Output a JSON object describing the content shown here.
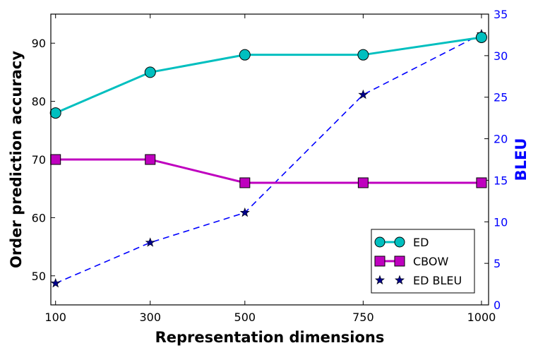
{
  "chart_data": {
    "type": "line",
    "xlabel": "Representation dimensions",
    "ylabel_left": "Order prediction accuracy",
    "ylabel_right": "BLEU",
    "x": [
      100,
      300,
      500,
      750,
      1000
    ],
    "x_tick_labels": [
      "100",
      "300",
      "500",
      "750",
      "1000"
    ],
    "xlim": [
      90,
      1015
    ],
    "ylim_left": [
      45,
      95
    ],
    "ylim_right": [
      0,
      35
    ],
    "y_left_ticks": [
      50,
      60,
      70,
      80,
      90
    ],
    "y_right_ticks": [
      0,
      5,
      10,
      15,
      20,
      25,
      30,
      35
    ],
    "series": [
      {
        "name": "ED",
        "axis": "left",
        "values": [
          78,
          85,
          88,
          88,
          91
        ],
        "color": "#00bfbf",
        "marker": "circle",
        "style": "solid"
      },
      {
        "name": "CBOW",
        "axis": "left",
        "values": [
          70,
          70,
          66,
          66,
          66
        ],
        "color": "#bf00bf",
        "marker": "square",
        "style": "solid"
      },
      {
        "name": "ED BLEU",
        "axis": "right",
        "values": [
          2.6,
          7.5,
          11.1,
          25.3,
          32.6
        ],
        "color": "#0000ff",
        "marker_color": "#00008b",
        "marker": "star",
        "style": "dashed"
      }
    ],
    "legend_position": "bottom-right",
    "right_axis_color": "#0000ff"
  }
}
